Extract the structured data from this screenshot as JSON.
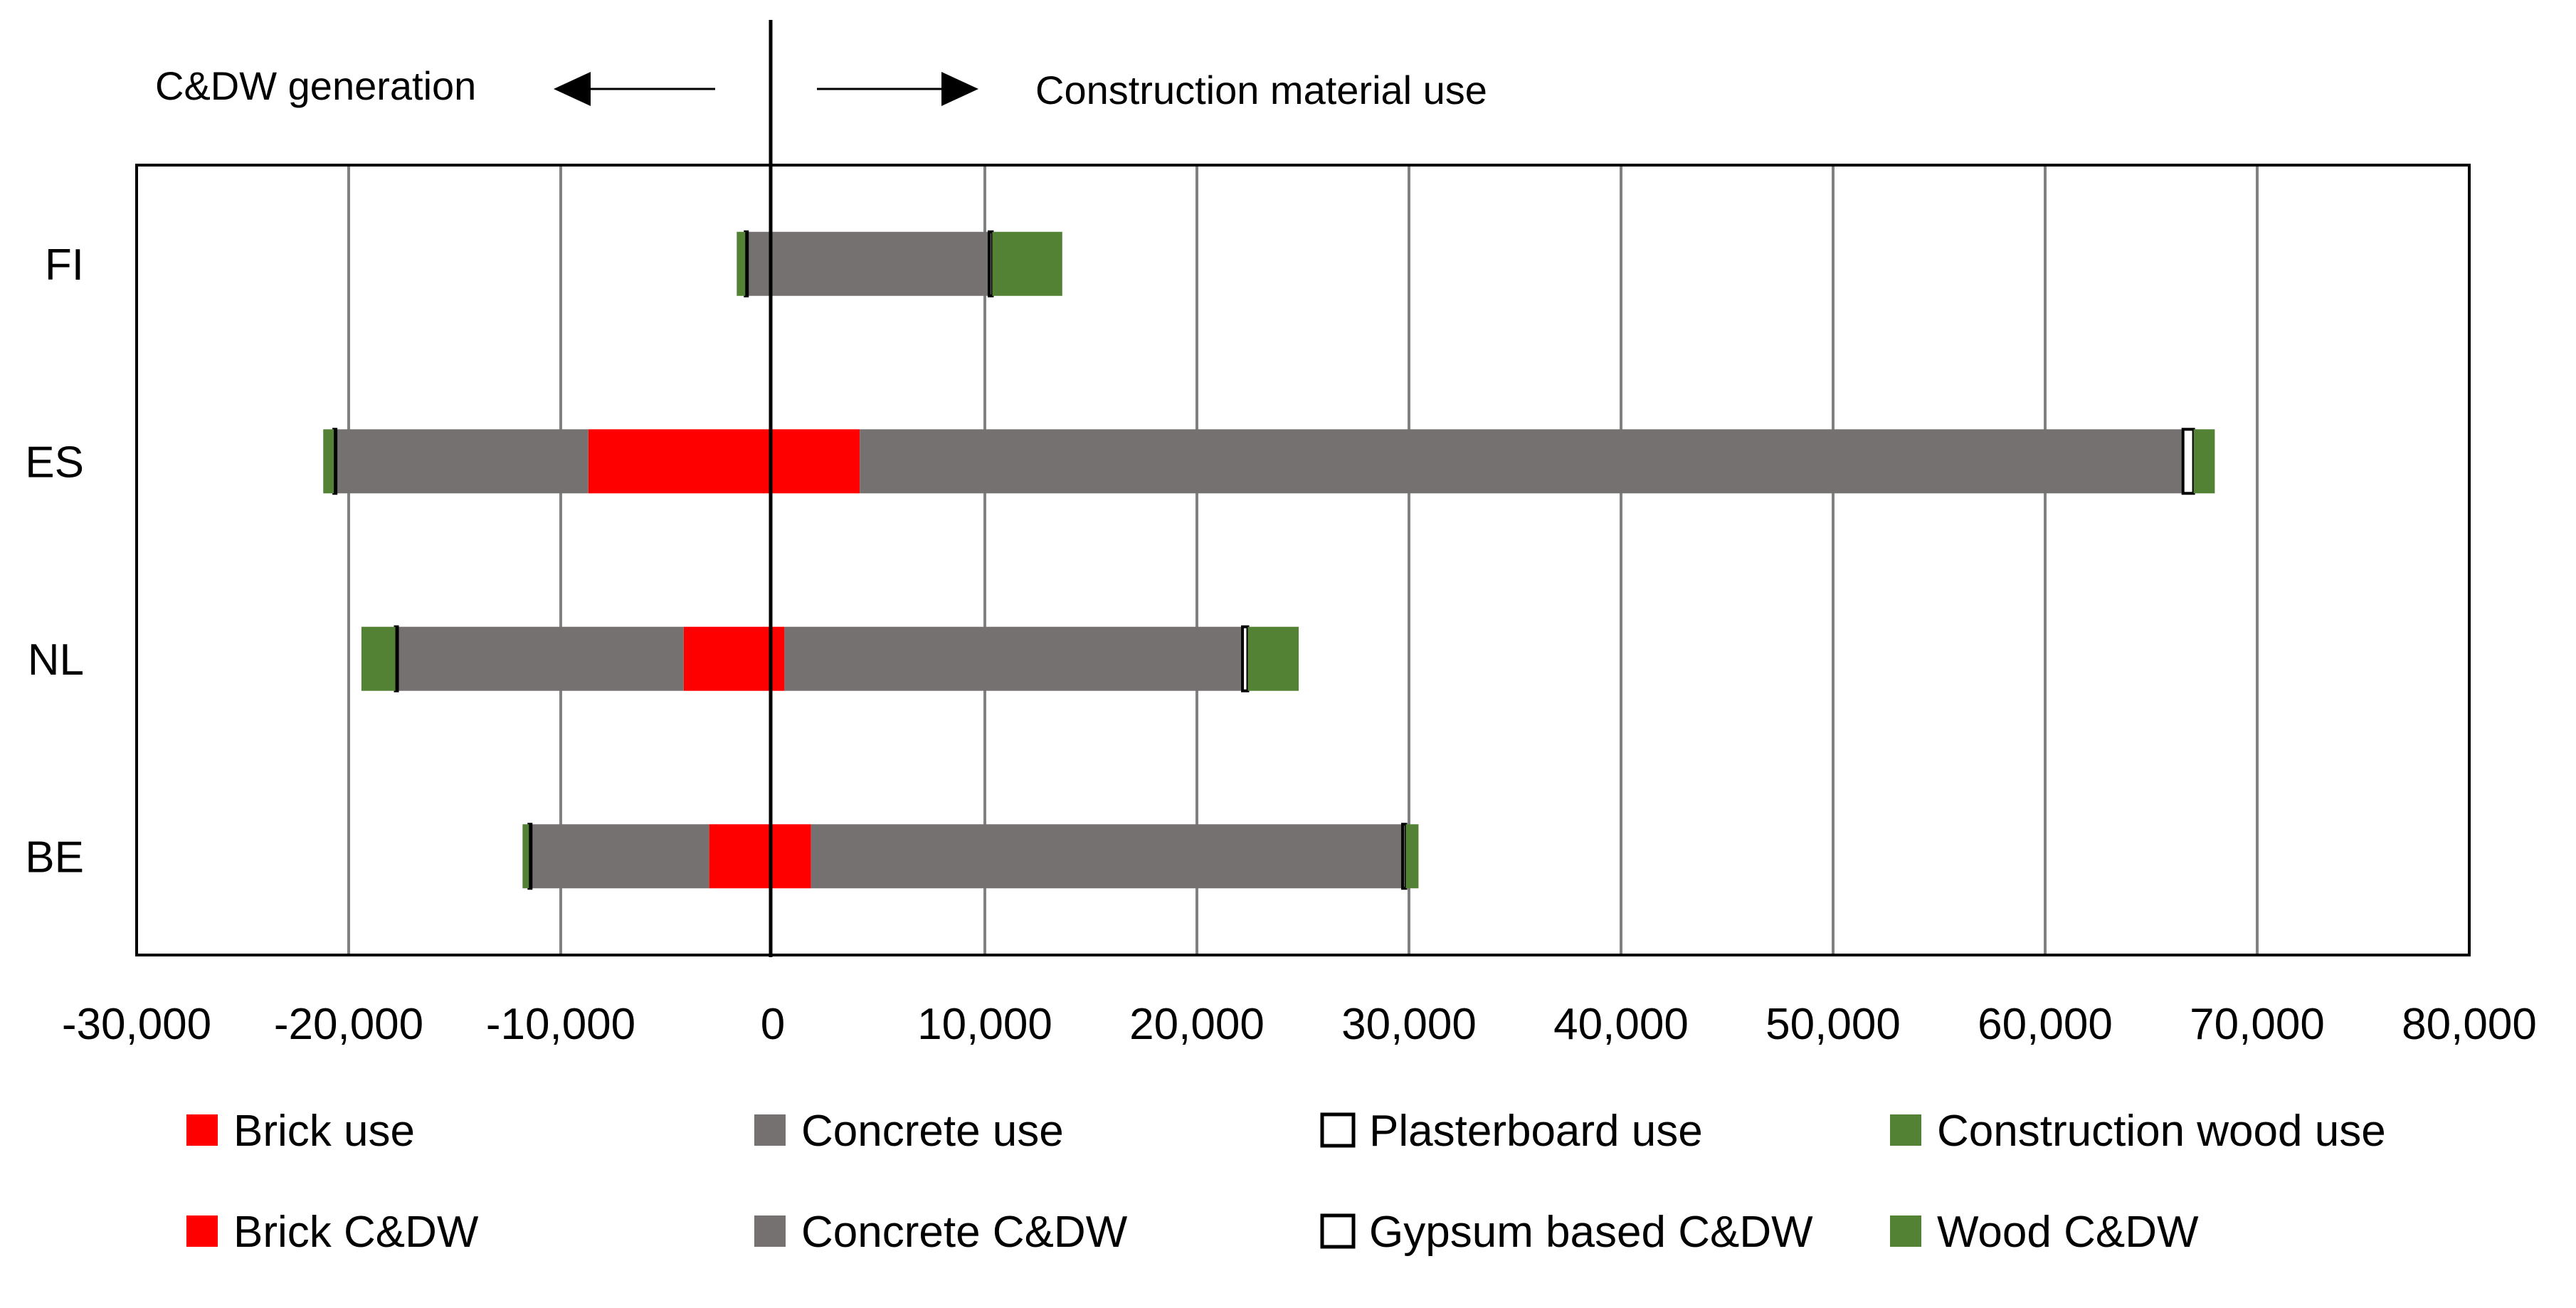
{
  "chart_data": {
    "type": "bar",
    "orientation": "horizontal",
    "stacked": true,
    "categories": [
      "FI",
      "ES",
      "NL",
      "BE"
    ],
    "xlim": [
      -30000,
      80000
    ],
    "xticks": [
      -30000,
      -20000,
      -10000,
      0,
      10000,
      20000,
      30000,
      40000,
      50000,
      60000,
      70000,
      80000
    ],
    "xtick_labels": [
      "-30,000",
      "-20,000",
      "-10,000",
      "0",
      "10,000",
      "20,000",
      "30,000",
      "40,000",
      "50,000",
      "60,000",
      "70,000",
      "80,000"
    ],
    "grid": true,
    "legend_position": "bottom",
    "direction_labels": {
      "left": "C&DW generation",
      "right": "Construction material use"
    },
    "series": [
      {
        "name": "Brick use",
        "side": "use",
        "color": "#ff0000",
        "values": [
          0,
          4100,
          550,
          1800
        ]
      },
      {
        "name": "Concrete use",
        "side": "use",
        "color": "#767171",
        "values": [
          10200,
          62400,
          21600,
          27900
        ]
      },
      {
        "name": "Plasterboard use",
        "side": "use",
        "color": "#ffffff",
        "outline": "#000000",
        "values": [
          150,
          500,
          250,
          150
        ]
      },
      {
        "name": "Construction wood use",
        "side": "use",
        "color": "#548235",
        "values": [
          3300,
          1000,
          2400,
          600
        ]
      },
      {
        "name": "Brick C&DW",
        "side": "generation",
        "color": "#ff0000",
        "values": [
          0,
          -8700,
          -4200,
          -3000
        ]
      },
      {
        "name": "Concrete C&DW",
        "side": "generation",
        "color": "#767171",
        "values": [
          -1200,
          -11900,
          -13500,
          -8400
        ]
      },
      {
        "name": "Gypsum based C&DW",
        "side": "generation",
        "color": "#ffffff",
        "outline": "#000000",
        "values": [
          -100,
          -100,
          -100,
          -100
        ]
      },
      {
        "name": "Wood C&DW",
        "side": "generation",
        "color": "#548235",
        "values": [
          -400,
          -500,
          -1600,
          -300
        ]
      }
    ]
  }
}
